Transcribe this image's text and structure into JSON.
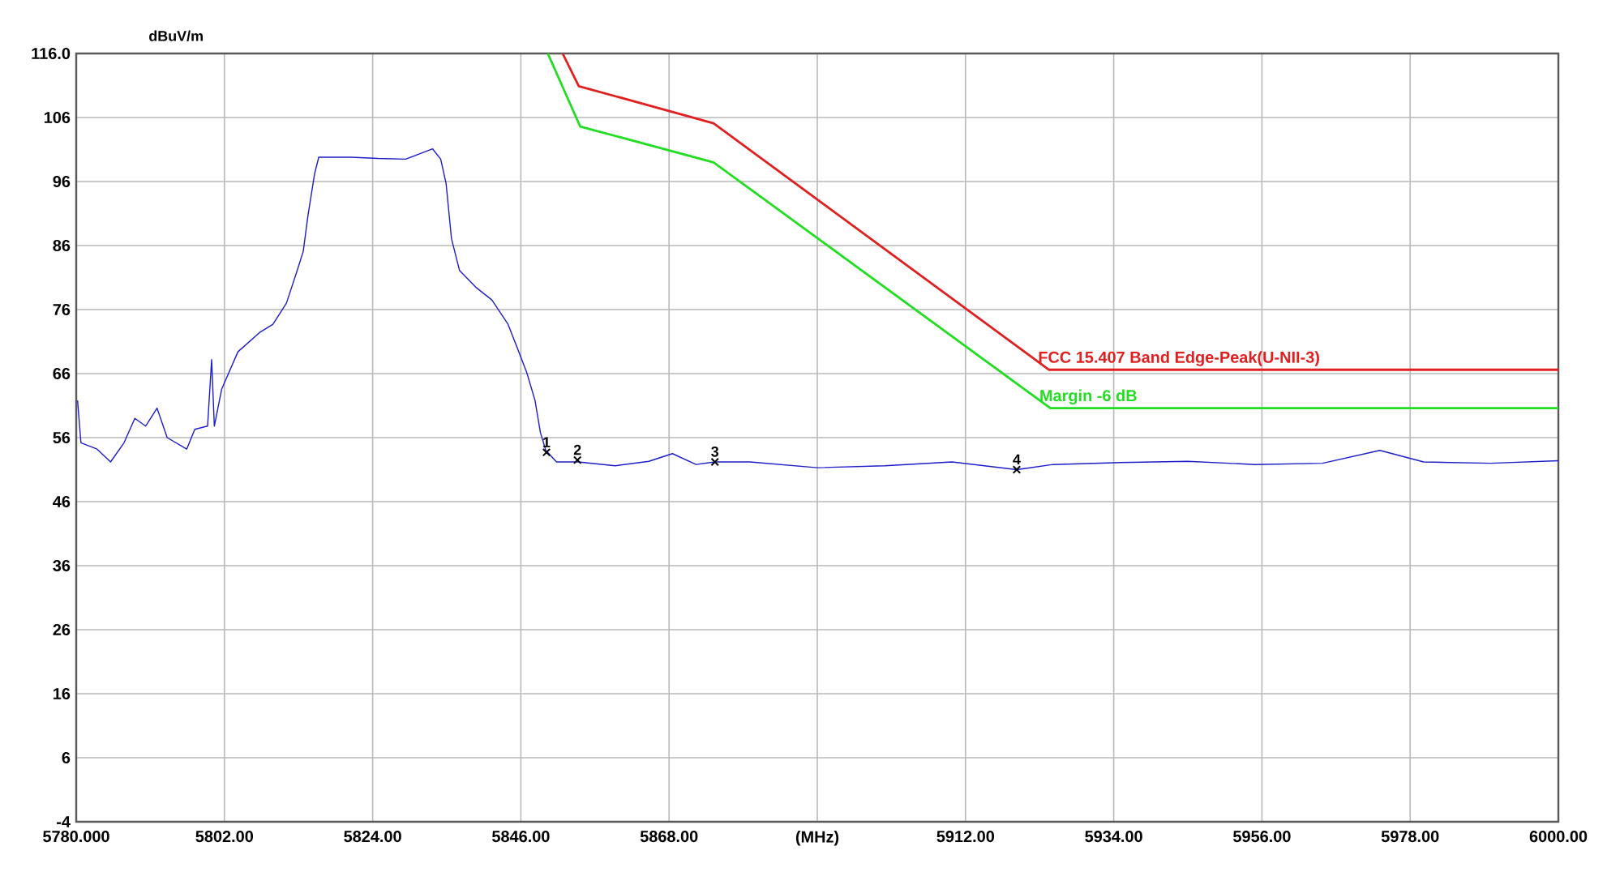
{
  "chart_data": {
    "type": "line",
    "xlabel": "(MHz)",
    "ylabel": "dBuV/m",
    "xlim": [
      5780,
      6000
    ],
    "ylim": [
      -4,
      116
    ],
    "xticks": [
      {
        "value": 5780,
        "label": "5780.000"
      },
      {
        "value": 5802,
        "label": "5802.00"
      },
      {
        "value": 5824,
        "label": "5824.00"
      },
      {
        "value": 5846,
        "label": "5846.00"
      },
      {
        "value": 5868,
        "label": "5868.00"
      },
      {
        "value": 5890,
        "label": null
      },
      {
        "value": 5912,
        "label": "5912.00"
      },
      {
        "value": 5934,
        "label": "5934.00"
      },
      {
        "value": 5956,
        "label": "5956.00"
      },
      {
        "value": 5978,
        "label": "5978.00"
      },
      {
        "value": 6000,
        "label": "6000.00"
      }
    ],
    "yticks": [
      -4,
      6,
      16,
      26,
      36,
      46,
      56,
      66,
      76,
      86,
      96,
      106,
      {
        "value": 116,
        "label": "116.0"
      }
    ],
    "grid": true,
    "series": [
      {
        "color": "#1c1cc8",
        "x": [
          5780.2,
          5780.7,
          5783.1,
          5785.1,
          5787.1,
          5788.7,
          5790.3,
          5792.0,
          5793.5,
          5796.4,
          5797.6,
          5799.5,
          5800.1,
          5800.5,
          5801.6,
          5804.0,
          5807.2,
          5809.2,
          5811.2,
          5812.8,
          5813.7,
          5814.4,
          5815.4,
          5816.0,
          5820.8,
          5824.8,
          5828.9,
          5832.9,
          5834.1,
          5834.9,
          5835.7,
          5836.9,
          5839.3,
          5841.7,
          5844.1,
          5845.7,
          5846.9,
          5848.1,
          5848.9,
          5849.7,
          5851.3,
          5854.5,
          5860,
          5865,
          5868.5,
          5872,
          5874.8,
          5880,
          5890,
          5900,
          5910,
          5919.6,
          5925,
          5935,
          5945,
          5955,
          5965,
          5973.5,
          5980,
          5990,
          6000
        ],
        "values": [
          61.8,
          55.2,
          54.2,
          52.2,
          55.2,
          59.0,
          57.8,
          60.6,
          56.0,
          54.2,
          57.3,
          57.8,
          68.2,
          57.8,
          63.6,
          69.4,
          72.4,
          73.7,
          77.0,
          82.1,
          85.1,
          90.7,
          97.3,
          99.8,
          99.8,
          99.6,
          99.5,
          101.1,
          99.5,
          95.7,
          87.1,
          82.1,
          79.5,
          77.5,
          73.7,
          69.4,
          66.1,
          61.8,
          56.8,
          54.0,
          52.2,
          52.2,
          51.6,
          52.3,
          53.5,
          51.8,
          52.2,
          52.2,
          51.3,
          51.6,
          52.2,
          51.0,
          51.8,
          52.1,
          52.3,
          51.8,
          52.0,
          54.0,
          52.2,
          52.0,
          52.4
        ]
      },
      {
        "name": "FCC 15.407 Band Edge-Peak(U-NII-3)",
        "color": "#e02020",
        "x": [
          5852.2,
          5854.6,
          5874.6,
          5924.4,
          6000
        ],
        "values": [
          116,
          110.9,
          105.1,
          66.6,
          66.6
        ]
      },
      {
        "name": "Margin -6 dB",
        "color": "#22dd22",
        "x": [
          5850.0,
          5854.8,
          5874.6,
          5924.6,
          6000
        ],
        "values": [
          116,
          104.6,
          99.0,
          60.6,
          60.6
        ]
      },
      {
        "type": "scatter",
        "marker": "cross",
        "color": "#000000",
        "x": [
          5849.8,
          5854.4,
          5874.8,
          5919.6
        ],
        "values": [
          53.7,
          52.5,
          52.2,
          51.0
        ]
      }
    ],
    "annotations": [
      {
        "text": "1",
        "x": 5849.8,
        "y": 53.7
      },
      {
        "text": "2",
        "x": 5854.4,
        "y": 52.5
      },
      {
        "text": "3",
        "x": 5874.8,
        "y": 52.2
      },
      {
        "text": "4",
        "x": 5919.6,
        "y": 51.0
      }
    ]
  }
}
